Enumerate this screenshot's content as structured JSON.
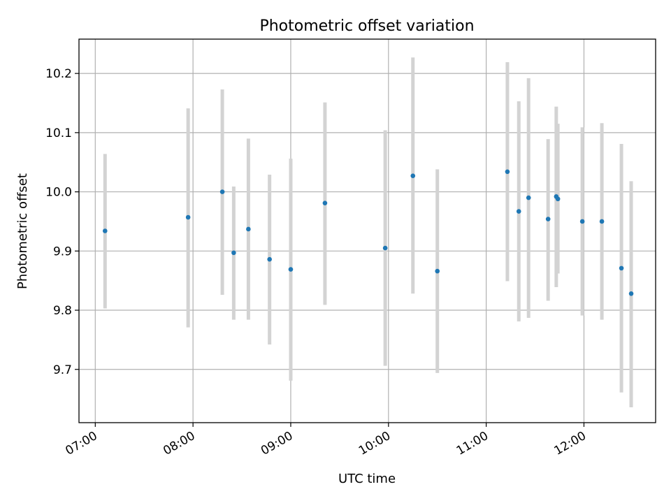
{
  "chart_data": {
    "type": "scatter",
    "title": "Photometric offset variation",
    "xlabel": "UTC time",
    "ylabel": "Photometric offset",
    "grid": true,
    "x_tick_labels": [
      "07:00",
      "08:00",
      "09:00",
      "10:00",
      "11:00",
      "12:00"
    ],
    "y_tick_labels": [
      "9.7",
      "9.8",
      "9.9",
      "10.0",
      "10.1",
      "10.2"
    ],
    "y_ticks": [
      9.7,
      9.8,
      9.9,
      10.0,
      10.1,
      10.2
    ],
    "xlim": [
      "06:50",
      "12:44"
    ],
    "ylim": [
      9.61,
      10.258
    ],
    "colors": {
      "marker": "#1f77b4",
      "errorbar": "#d3d3d3",
      "grid": "#b0b0b0"
    },
    "series": [
      {
        "points": [
          {
            "x": "07:06",
            "y": 9.934,
            "ylow": 9.803,
            "yhigh": 10.064
          },
          {
            "x": "07:57",
            "y": 9.957,
            "ylow": 9.771,
            "yhigh": 10.141
          },
          {
            "x": "08:18",
            "y": 10.0,
            "ylow": 9.826,
            "yhigh": 10.173
          },
          {
            "x": "08:25",
            "y": 9.897,
            "ylow": 9.784,
            "yhigh": 10.009
          },
          {
            "x": "08:34",
            "y": 9.937,
            "ylow": 9.784,
            "yhigh": 10.09
          },
          {
            "x": "08:47",
            "y": 9.886,
            "ylow": 9.742,
            "yhigh": 10.029
          },
          {
            "x": "09:00",
            "y": 9.869,
            "ylow": 9.681,
            "yhigh": 10.056
          },
          {
            "x": "09:21",
            "y": 9.981,
            "ylow": 9.809,
            "yhigh": 10.151
          },
          {
            "x": "09:58",
            "y": 9.905,
            "ylow": 9.706,
            "yhigh": 10.104
          },
          {
            "x": "10:15",
            "y": 10.027,
            "ylow": 9.828,
            "yhigh": 10.227
          },
          {
            "x": "10:30",
            "y": 9.866,
            "ylow": 9.694,
            "yhigh": 10.038
          },
          {
            "x": "11:13",
            "y": 10.034,
            "ylow": 9.849,
            "yhigh": 10.219
          },
          {
            "x": "11:20",
            "y": 9.967,
            "ylow": 9.781,
            "yhigh": 10.153
          },
          {
            "x": "11:26",
            "y": 9.99,
            "ylow": 9.787,
            "yhigh": 10.192
          },
          {
            "x": "11:38",
            "y": 9.954,
            "ylow": 9.816,
            "yhigh": 10.089
          },
          {
            "x": "11:43",
            "y": 9.992,
            "ylow": 9.839,
            "yhigh": 10.144
          },
          {
            "x": "11:44",
            "y": 9.988,
            "ylow": 9.862,
            "yhigh": 10.115
          },
          {
            "x": "11:59",
            "y": 9.95,
            "ylow": 9.791,
            "yhigh": 10.109
          },
          {
            "x": "12:11",
            "y": 9.95,
            "ylow": 9.784,
            "yhigh": 10.116
          },
          {
            "x": "12:23",
            "y": 9.871,
            "ylow": 9.661,
            "yhigh": 10.081
          },
          {
            "x": "12:29",
            "y": 9.828,
            "ylow": 9.636,
            "yhigh": 10.018
          }
        ]
      }
    ]
  }
}
